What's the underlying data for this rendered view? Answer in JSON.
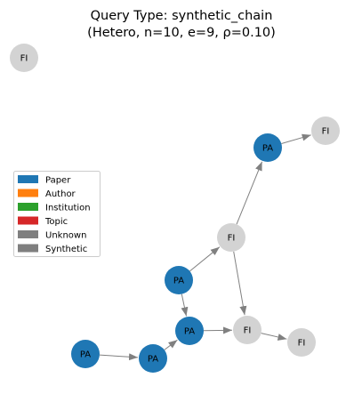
{
  "title": {
    "line1": "Query Type: synthetic_chain",
    "line2": "(Hetero, n=10, e=9, ρ=0.10)"
  },
  "colors": {
    "paper": "#1f77b4",
    "author": "#ff7f0e",
    "institution": "#2ca02c",
    "topic": "#d62728",
    "unknown": "#7f7f7f",
    "synthetic": "#7f7f7f",
    "fi_node": "#d3d3d3",
    "edge": "#808080"
  },
  "legend": {
    "items": [
      {
        "label": "Paper",
        "color": "#1f77b4"
      },
      {
        "label": "Author",
        "color": "#ff7f0e"
      },
      {
        "label": "Institution",
        "color": "#2ca02c"
      },
      {
        "label": "Topic",
        "color": "#d62728"
      },
      {
        "label": "Unknown",
        "color": "#7f7f7f"
      },
      {
        "label": "Synthetic",
        "color": "#7f7f7f"
      }
    ]
  },
  "graph": {
    "nodes": [
      {
        "id": "n0",
        "label": "FI"
      },
      {
        "id": "n1",
        "label": "PA"
      },
      {
        "id": "n2",
        "label": "FI"
      },
      {
        "id": "n3",
        "label": "FI"
      },
      {
        "id": "n4",
        "label": "PA"
      },
      {
        "id": "n5",
        "label": "PA"
      },
      {
        "id": "n6",
        "label": "FI"
      },
      {
        "id": "n7",
        "label": "FI"
      },
      {
        "id": "n8",
        "label": "PA"
      },
      {
        "id": "n9",
        "label": "PA"
      }
    ],
    "edges": [
      {
        "source": "n8",
        "target": "n9"
      },
      {
        "source": "n9",
        "target": "n5"
      },
      {
        "source": "n4",
        "target": "n5"
      },
      {
        "source": "n4",
        "target": "n3"
      },
      {
        "source": "n3",
        "target": "n1"
      },
      {
        "source": "n1",
        "target": "n2"
      },
      {
        "source": "n3",
        "target": "n6"
      },
      {
        "source": "n5",
        "target": "n6"
      },
      {
        "source": "n6",
        "target": "n7"
      }
    ]
  }
}
